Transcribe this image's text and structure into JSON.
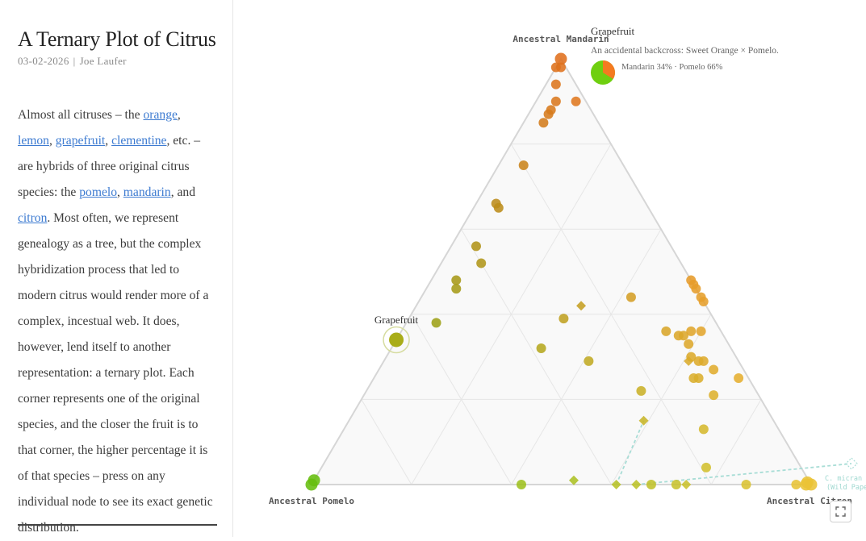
{
  "article": {
    "title": "A Ternary Plot of Citrus",
    "date": "03-02-2026",
    "separator": "|",
    "author": "Joe Laufer",
    "p1": "Almost all citruses – the ",
    "link_orange": "orange",
    "c1": ", ",
    "link_lemon": "lemon",
    "c2": ", ",
    "link_grapefruit": "grapefruit",
    "c3": ", ",
    "link_clementine": "clementine",
    "p2": ", etc. – are hybrids of three original citrus species: the ",
    "link_pomelo": "pomelo",
    "c4": ", ",
    "link_mandarin": "mandarin",
    "c5": ", and ",
    "link_citron": "citron",
    "p3": ". Most often, we represent genealogy as a tree, but the complex hybridization process that led to modern citrus would render more of a complex, incestual web. It does, however, lend itself to another representation: a ternary plot. Each corner represents one of the original species, and the closer the fruit is to that corner, the higher percentage it is of that species – press on any individual node to see its exact genetic distribution."
  },
  "colors": {
    "mandarin": "#f47a20",
    "citron": "#ffd43b",
    "pomelo": "#6fcf10",
    "grid": "#e6e6e6",
    "edge": "#d6d6d6",
    "fill": "#f9f9f9",
    "link": "#a8ddd6"
  },
  "chart_data": {
    "type": "scatter",
    "subtype": "ternary",
    "corner_labels": {
      "top": "Ancestral Mandarin",
      "left": "Ancestral Pomelo",
      "right": "Ancestral Citron"
    },
    "components": [
      "mandarin",
      "pomelo",
      "citron"
    ],
    "grid_step": 0.2,
    "selected": {
      "name": "Grapefruit",
      "mandarin": 0.34,
      "pomelo": 0.66,
      "citron": 0.0
    },
    "tooltip": {
      "title": "Grapefruit",
      "note": "An accidental backcross: Sweet Orange × Pomelo.",
      "breakdown": "Mandarin 34% · Pomelo 66%"
    },
    "ghost_label": "C. micrantha (wild Papeda)",
    "ghost_label_line1": "C. micran",
    "ghost_label_line2": "(Wild Pape",
    "points": [
      {
        "m": 1.0,
        "p": 0.0,
        "c": 0.0,
        "shape": "circle"
      },
      {
        "m": 0.98,
        "p": 0.01,
        "c": 0.01,
        "shape": "circle"
      },
      {
        "m": 0.98,
        "p": 0.02,
        "c": 0.0,
        "shape": "circle"
      },
      {
        "m": 0.94,
        "p": 0.04,
        "c": 0.02,
        "shape": "circle"
      },
      {
        "m": 0.9,
        "p": 0.06,
        "c": 0.04,
        "shape": "circle"
      },
      {
        "m": 0.9,
        "p": 0.02,
        "c": 0.08,
        "shape": "circle"
      },
      {
        "m": 0.88,
        "p": 0.08,
        "c": 0.04,
        "shape": "circle"
      },
      {
        "m": 0.87,
        "p": 0.09,
        "c": 0.04,
        "shape": "circle"
      },
      {
        "m": 0.85,
        "p": 0.11,
        "c": 0.04,
        "shape": "circle"
      },
      {
        "m": 0.75,
        "p": 0.2,
        "c": 0.05,
        "shape": "circle"
      },
      {
        "m": 0.66,
        "p": 0.3,
        "c": 0.04,
        "shape": "circle"
      },
      {
        "m": 0.65,
        "p": 0.3,
        "c": 0.05,
        "shape": "circle"
      },
      {
        "m": 0.56,
        "p": 0.39,
        "c": 0.05,
        "shape": "circle"
      },
      {
        "m": 0.52,
        "p": 0.4,
        "c": 0.08,
        "shape": "circle"
      },
      {
        "m": 0.48,
        "p": 0.47,
        "c": 0.05,
        "shape": "circle"
      },
      {
        "m": 0.46,
        "p": 0.48,
        "c": 0.06,
        "shape": "circle"
      },
      {
        "m": 0.38,
        "p": 0.56,
        "c": 0.06,
        "shape": "circle"
      },
      {
        "m": 0.39,
        "p": 0.3,
        "c": 0.31,
        "shape": "circle"
      },
      {
        "m": 0.32,
        "p": 0.38,
        "c": 0.3,
        "shape": "circle"
      },
      {
        "m": 0.29,
        "p": 0.3,
        "c": 0.41,
        "shape": "circle"
      },
      {
        "m": 0.48,
        "p": 0.0,
        "c": 0.52,
        "shape": "circle"
      },
      {
        "m": 0.47,
        "p": 0.0,
        "c": 0.53,
        "shape": "circle"
      },
      {
        "m": 0.46,
        "p": 0.0,
        "c": 0.54,
        "shape": "circle"
      },
      {
        "m": 0.44,
        "p": 0.0,
        "c": 0.56,
        "shape": "circle"
      },
      {
        "m": 0.43,
        "p": 0.0,
        "c": 0.57,
        "shape": "circle"
      },
      {
        "m": 0.44,
        "p": 0.14,
        "c": 0.42,
        "shape": "circle"
      },
      {
        "m": 0.36,
        "p": 0.11,
        "c": 0.53,
        "shape": "circle"
      },
      {
        "m": 0.35,
        "p": 0.09,
        "c": 0.56,
        "shape": "circle"
      },
      {
        "m": 0.35,
        "p": 0.08,
        "c": 0.57,
        "shape": "circle"
      },
      {
        "m": 0.36,
        "p": 0.06,
        "c": 0.58,
        "shape": "circle"
      },
      {
        "m": 0.36,
        "p": 0.04,
        "c": 0.6,
        "shape": "circle"
      },
      {
        "m": 0.33,
        "p": 0.08,
        "c": 0.59,
        "shape": "circle"
      },
      {
        "m": 0.29,
        "p": 0.07,
        "c": 0.64,
        "shape": "circle"
      },
      {
        "m": 0.3,
        "p": 0.09,
        "c": 0.61,
        "shape": "circle"
      },
      {
        "m": 0.29,
        "p": 0.08,
        "c": 0.63,
        "shape": "circle"
      },
      {
        "m": 0.27,
        "p": 0.06,
        "c": 0.67,
        "shape": "circle"
      },
      {
        "m": 0.25,
        "p": 0.1,
        "c": 0.65,
        "shape": "circle"
      },
      {
        "m": 0.25,
        "p": 0.02,
        "c": 0.73,
        "shape": "circle"
      },
      {
        "m": 0.25,
        "p": 0.11,
        "c": 0.64,
        "shape": "circle"
      },
      {
        "m": 0.22,
        "p": 0.23,
        "c": 0.55,
        "shape": "circle"
      },
      {
        "m": 0.21,
        "p": 0.09,
        "c": 0.7,
        "shape": "circle"
      },
      {
        "m": 0.13,
        "p": 0.15,
        "c": 0.72,
        "shape": "circle"
      },
      {
        "m": 0.04,
        "p": 0.19,
        "c": 0.77,
        "shape": "circle"
      },
      {
        "m": 0.0,
        "p": 0.32,
        "c": 0.68,
        "shape": "circle"
      },
      {
        "m": 0.0,
        "p": 0.27,
        "c": 0.73,
        "shape": "circle"
      },
      {
        "m": 0.0,
        "p": 0.13,
        "c": 0.87,
        "shape": "circle"
      },
      {
        "m": 0.0,
        "p": 0.58,
        "c": 0.42,
        "shape": "circle"
      },
      {
        "m": 0.01,
        "p": 0.99,
        "c": 0.0,
        "shape": "circle"
      },
      {
        "m": 0.0,
        "p": 1.0,
        "c": 0.0,
        "shape": "circle"
      },
      {
        "m": 0.0,
        "p": 0.01,
        "c": 0.99,
        "shape": "circle"
      },
      {
        "m": 0.0,
        "p": 0.0,
        "c": 1.0,
        "shape": "circle"
      },
      {
        "m": 0.0,
        "p": 0.03,
        "c": 0.97,
        "shape": "circle"
      },
      {
        "m": 0.005,
        "p": 0.005,
        "c": 0.99,
        "shape": "circle"
      },
      {
        "m": 0.42,
        "p": 0.25,
        "c": 0.33,
        "shape": "diamond"
      },
      {
        "m": 0.29,
        "p": 0.1,
        "c": 0.61,
        "shape": "diamond"
      },
      {
        "m": 0.15,
        "p": 0.26,
        "c": 0.59,
        "shape": "diamond"
      },
      {
        "m": 0.01,
        "p": 0.47,
        "c": 0.52,
        "shape": "diamond"
      },
      {
        "m": 0.0,
        "p": 0.39,
        "c": 0.61,
        "shape": "diamond"
      },
      {
        "m": 0.0,
        "p": 0.35,
        "c": 0.65,
        "shape": "diamond"
      },
      {
        "m": 0.0,
        "p": 0.25,
        "c": 0.75,
        "shape": "diamond"
      }
    ]
  }
}
